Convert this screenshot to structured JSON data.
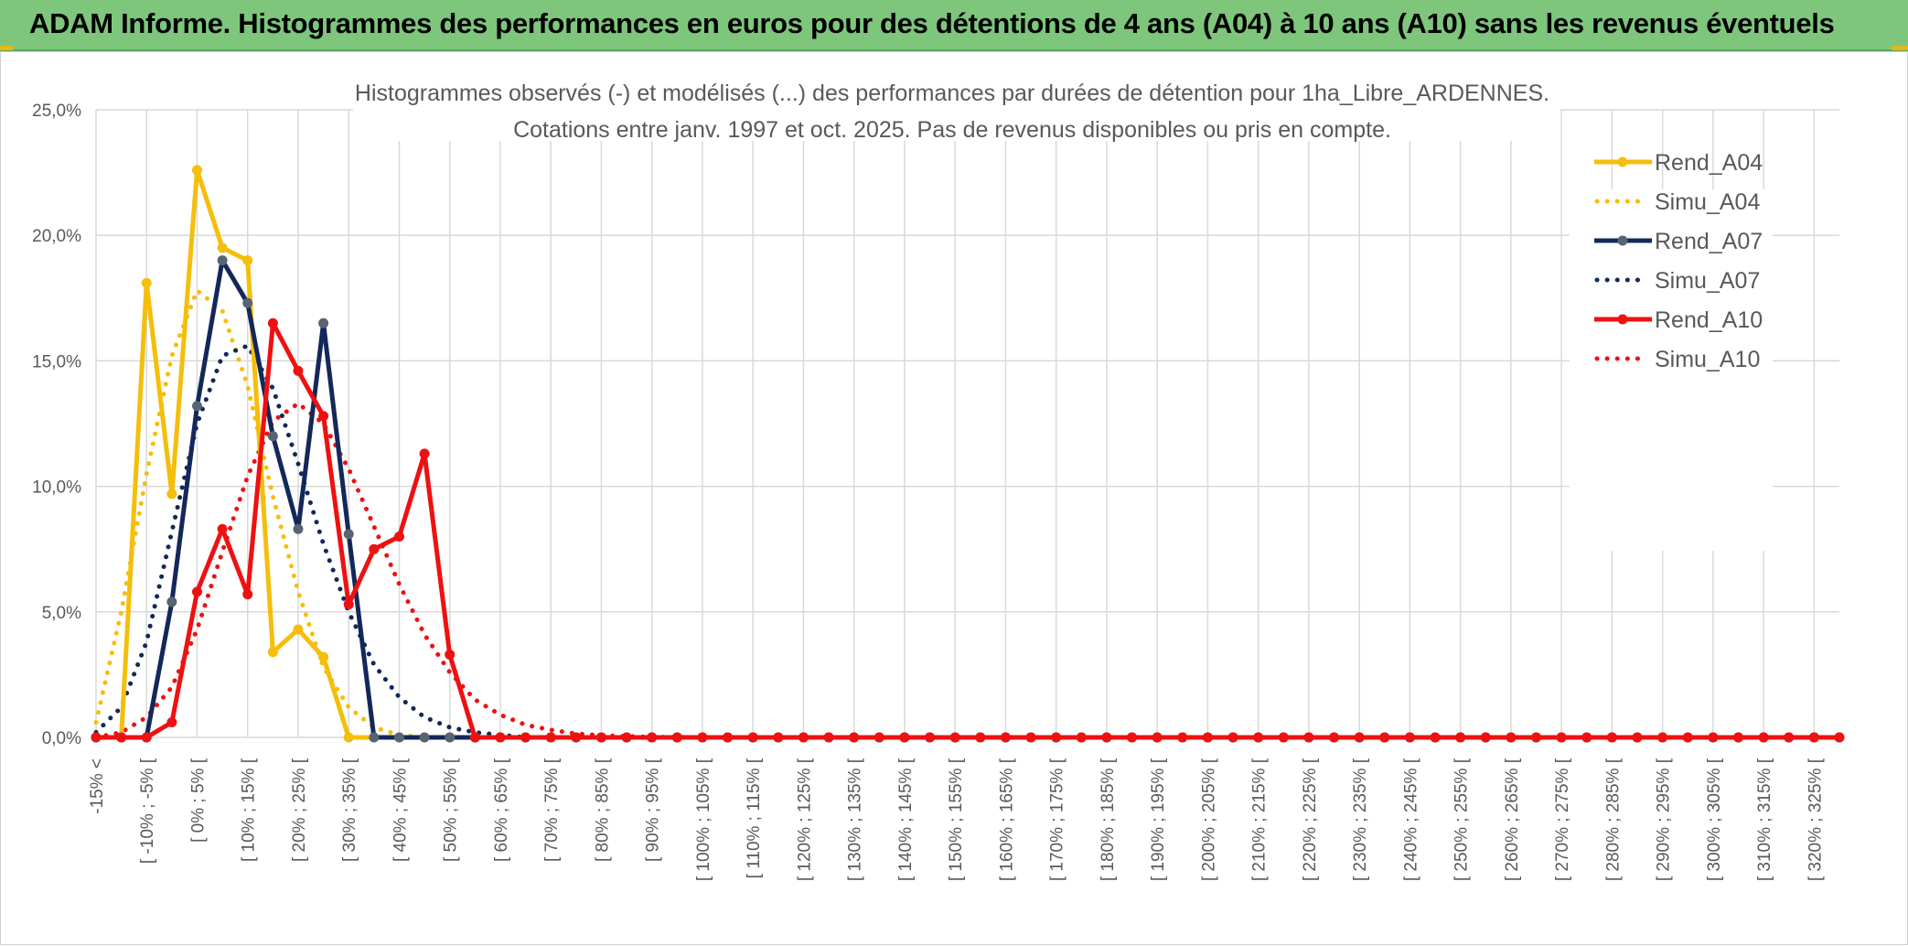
{
  "banner": {
    "title": "ADAM Informe. Histogrammes des performances en euros pour des détentions de 4 ans (A04) à 10 ans (A10) sans les revenus éventuels"
  },
  "colors": {
    "banner_bg": "#7dc67c",
    "a04": "#f5be0b",
    "a07": "#13285a",
    "a07_marker": "#596372",
    "a10": "#ee1111",
    "grid": "#d9d9d9"
  },
  "chart_data": {
    "type": "line",
    "title": "Histogrammes observés (-) et modélisés (...) des performances par durées de détention pour 1ha_Libre_ARDENNES.",
    "subtitle": "Cotations entre janv. 1997 et oct. 2025. Pas de revenus disponibles ou pris en compte.",
    "legend_position": "right",
    "grid": true,
    "ylim": [
      0,
      0.25
    ],
    "y_ticks": [
      "0,0%",
      "5,0%",
      "10,0%",
      "15,0%",
      "20,0%",
      "25,0%"
    ],
    "y_tick_values": [
      0,
      0.05,
      0.1,
      0.15,
      0.2,
      0.25
    ],
    "x_tick_labels": [
      "-15% <",
      "[ -10% ; -5% [",
      "[ 0% ; 5% [",
      "[ 10% ; 15% [",
      "[ 20% ; 25% [",
      "[ 30% ; 35% [",
      "[ 40% ; 45% [",
      "[ 50% ; 55% [",
      "[ 60% ; 65% [",
      "[ 70% ; 75% [",
      "[ 80% ; 85% [",
      "[ 90% ; 95% [",
      "[ 100% ; 105% [",
      "[ 110% ; 115% [",
      "[ 120% ; 125% [",
      "[ 130% ; 135% [",
      "[ 140% ; 145% [",
      "[ 150% ; 155% [",
      "[ 160% ; 165% [",
      "[ 170% ; 175% [",
      "[ 180% ; 185% [",
      "[ 190% ; 195% [",
      "[ 200% ; 205% [",
      "[ 210% ; 215% [",
      "[ 220% ; 225% [",
      "[ 230% ; 235% [",
      "[ 240% ; 245% [",
      "[ 250% ; 255% [",
      "[ 260% ; 265% [",
      "[ 270% ; 275% [",
      "[ 280% ; 285% [",
      "[ 290% ; 295% [",
      "[ 300% ; 305% [",
      "[ 310% ; 315% [",
      "[ 320% ; 325% ["
    ],
    "series": [
      {
        "name": "Rend_A04",
        "style": "solid",
        "color": "#f5be0b",
        "marker_color": "#f5be0b",
        "values": [
          0,
          0,
          0.181,
          0.097,
          0.226,
          0.195,
          0.19,
          0.034,
          0.043,
          0.032,
          0,
          0,
          0,
          0,
          0,
          0,
          0,
          0,
          0,
          0,
          0,
          0,
          0,
          0,
          0,
          0,
          0,
          0,
          0,
          0,
          0,
          0,
          0,
          0,
          0,
          0,
          0,
          0,
          0,
          0,
          0,
          0,
          0,
          0,
          0,
          0,
          0,
          0,
          0,
          0,
          0,
          0,
          0,
          0,
          0,
          0,
          0,
          0,
          0,
          0,
          0,
          0,
          0,
          0,
          0,
          0,
          0,
          0,
          0,
          0
        ]
      },
      {
        "name": "Simu_A04",
        "style": "dotted",
        "color": "#f5be0b",
        "values": [
          0.006,
          0.05,
          0.105,
          0.152,
          0.178,
          0.17,
          0.14,
          0.096,
          0.058,
          0.028,
          0.012,
          0.004,
          0.001,
          0,
          0,
          0,
          0,
          0,
          0,
          0,
          0,
          0,
          0,
          0,
          0,
          0,
          0,
          0,
          0,
          0,
          0,
          0,
          0,
          0,
          0,
          0,
          0,
          0,
          0,
          0,
          0,
          0,
          0,
          0,
          0,
          0,
          0,
          0,
          0,
          0,
          0,
          0,
          0,
          0,
          0,
          0,
          0,
          0,
          0,
          0,
          0,
          0,
          0,
          0,
          0,
          0,
          0,
          0,
          0,
          0
        ]
      },
      {
        "name": "Rend_A07",
        "style": "solid",
        "color": "#13285a",
        "marker_color": "#596372",
        "values": [
          0,
          0,
          0,
          0.054,
          0.132,
          0.19,
          0.173,
          0.12,
          0.083,
          0.165,
          0.081,
          0,
          0,
          0,
          0,
          0,
          0,
          0,
          0,
          0,
          0,
          0,
          0,
          0,
          0,
          0,
          0,
          0,
          0,
          0,
          0,
          0,
          0,
          0,
          0,
          0,
          0,
          0,
          0,
          0,
          0,
          0,
          0,
          0,
          0,
          0,
          0,
          0,
          0,
          0,
          0,
          0,
          0,
          0,
          0,
          0,
          0,
          0,
          0,
          0,
          0,
          0,
          0,
          0,
          0,
          0,
          0,
          0,
          0,
          0
        ]
      },
      {
        "name": "Simu_A07",
        "style": "dotted",
        "color": "#13285a",
        "values": [
          0.002,
          0.012,
          0.038,
          0.082,
          0.125,
          0.152,
          0.156,
          0.139,
          0.109,
          0.077,
          0.05,
          0.029,
          0.016,
          0.008,
          0.004,
          0.002,
          0.001,
          0,
          0,
          0,
          0,
          0,
          0,
          0,
          0,
          0,
          0,
          0,
          0,
          0,
          0,
          0,
          0,
          0,
          0,
          0,
          0,
          0,
          0,
          0,
          0,
          0,
          0,
          0,
          0,
          0,
          0,
          0,
          0,
          0,
          0,
          0,
          0,
          0,
          0,
          0,
          0,
          0,
          0,
          0,
          0,
          0,
          0,
          0,
          0,
          0,
          0,
          0,
          0,
          0
        ]
      },
      {
        "name": "Rend_A10",
        "style": "solid",
        "color": "#ee1111",
        "marker_color": "#ee1111",
        "values": [
          0,
          0,
          0,
          0.006,
          0.058,
          0.083,
          0.057,
          0.165,
          0.146,
          0.128,
          0.053,
          0.075,
          0.08,
          0.113,
          0.033,
          0,
          0,
          0,
          0,
          0,
          0,
          0,
          0,
          0,
          0,
          0,
          0,
          0,
          0,
          0,
          0,
          0,
          0,
          0,
          0,
          0,
          0,
          0,
          0,
          0,
          0,
          0,
          0,
          0,
          0,
          0,
          0,
          0,
          0,
          0,
          0,
          0,
          0,
          0,
          0,
          0,
          0,
          0,
          0,
          0,
          0,
          0,
          0,
          0,
          0,
          0,
          0,
          0,
          0,
          0
        ]
      },
      {
        "name": "Simu_A10",
        "style": "dotted",
        "color": "#ee1111",
        "values": [
          0,
          0.002,
          0.008,
          0.02,
          0.043,
          0.074,
          0.104,
          0.126,
          0.133,
          0.125,
          0.107,
          0.084,
          0.061,
          0.041,
          0.026,
          0.015,
          0.009,
          0.005,
          0.003,
          0.0015,
          0.0008,
          0.0004,
          0.0002,
          0.0001,
          0,
          0,
          0,
          0,
          0,
          0,
          0,
          0,
          0,
          0,
          0,
          0,
          0,
          0,
          0,
          0,
          0,
          0,
          0,
          0,
          0,
          0,
          0,
          0,
          0,
          0,
          0,
          0,
          0,
          0,
          0,
          0,
          0,
          0,
          0,
          0,
          0,
          0,
          0,
          0,
          0,
          0,
          0,
          0,
          0,
          0
        ]
      }
    ]
  }
}
